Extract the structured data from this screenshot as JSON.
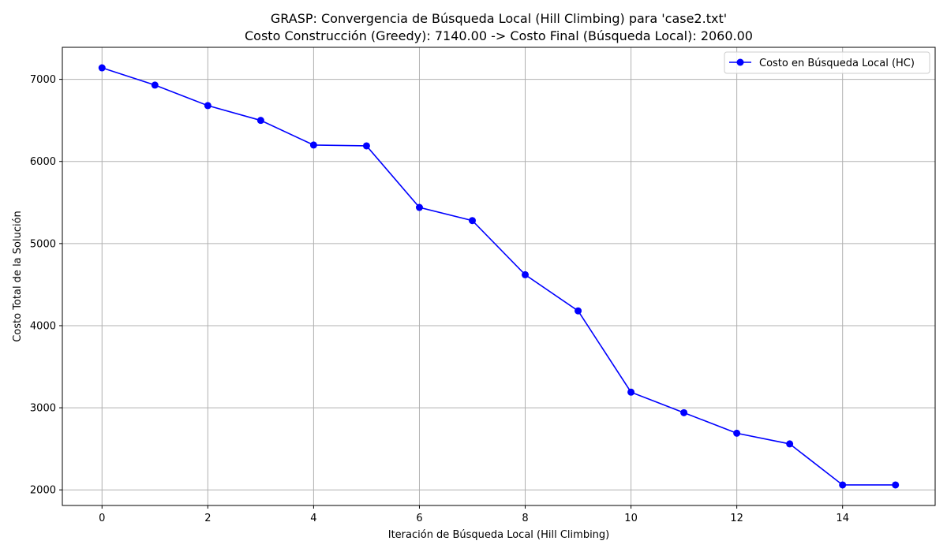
{
  "chart_data": {
    "type": "line",
    "title": "GRASP: Convergencia de Búsqueda Local (Hill Climbing) para 'case2.txt'",
    "subtitle": "Costo Construcción (Greedy): 7140.00 -> Costo Final (Búsqueda Local): 2060.00",
    "xlabel": "Iteración de Búsqueda Local (Hill Climbing)",
    "ylabel": "Costo Total de la Solución",
    "xlim": [
      -0.75,
      15.75
    ],
    "ylim": [
      1810,
      7390
    ],
    "xticks": [
      0,
      2,
      4,
      6,
      8,
      10,
      12,
      14
    ],
    "yticks": [
      2000,
      3000,
      4000,
      5000,
      6000,
      7000
    ],
    "grid": true,
    "legend_position": "top-right",
    "series": [
      {
        "name": "Costo en Búsqueda Local (HC)",
        "color": "#0000ff",
        "marker": "circle",
        "x": [
          0,
          1,
          2,
          3,
          4,
          5,
          6,
          7,
          8,
          9,
          10,
          11,
          12,
          13,
          14,
          15
        ],
        "y": [
          7140,
          6930,
          6680,
          6500,
          6200,
          6190,
          5440,
          5280,
          4620,
          4180,
          3190,
          2940,
          2690,
          2560,
          2060,
          2060
        ]
      }
    ]
  }
}
